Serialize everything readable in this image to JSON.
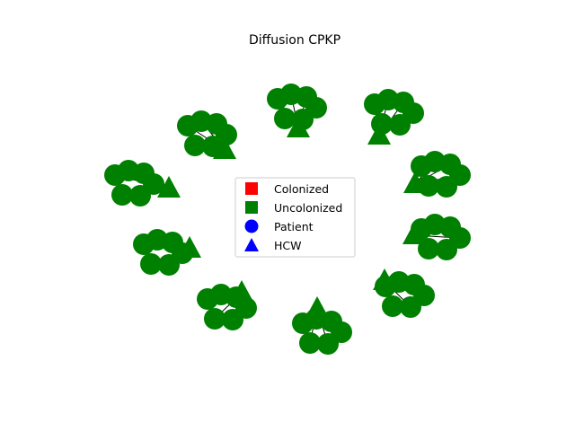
{
  "figure": {
    "title": "Diffusion CPKP"
  },
  "legend": {
    "items": [
      {
        "label": "Colonized",
        "shape": "square",
        "color": "#ff0000"
      },
      {
        "label": "Uncolonized",
        "shape": "square",
        "color": "#008000"
      },
      {
        "label": "Patient",
        "shape": "circle",
        "color": "#0000ff"
      },
      {
        "label": "HCW",
        "shape": "triangle",
        "color": "#0000ff"
      }
    ]
  },
  "network": {
    "node_color": "#008000",
    "edge_color": "#000000",
    "clusters": 10,
    "patients_per_cluster": 6,
    "hcw_per_cluster": 1,
    "node_state": "Uncolonized"
  }
}
